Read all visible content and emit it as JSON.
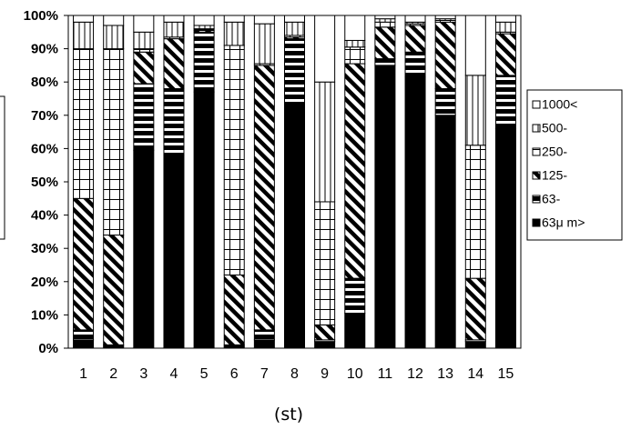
{
  "chart_data": {
    "type": "bar",
    "stacked": true,
    "percent": true,
    "categories": [
      "1",
      "2",
      "3",
      "4",
      "5",
      "6",
      "7",
      "8",
      "9",
      "10",
      "11",
      "12",
      "13",
      "14",
      "15"
    ],
    "xlabel": "(st)",
    "ylabel": "",
    "ylim": [
      0,
      100
    ],
    "yticks": [
      "0%",
      "10%",
      "20%",
      "30%",
      "40%",
      "50%",
      "60%",
      "70%",
      "80%",
      "90%",
      "100%"
    ],
    "grid": false,
    "legend_position": "right",
    "series": [
      {
        "name": "63μ m>",
        "pattern": "solid",
        "values": [
          2.5,
          0.5,
          59.5,
          58,
          77,
          0.5,
          2.5,
          73,
          2,
          10.5,
          85,
          81.5,
          70,
          2,
          66
        ]
      },
      {
        "name": "63-",
        "pattern": "hstripe",
        "values": [
          3,
          0.5,
          20,
          20,
          18,
          0.5,
          3,
          20,
          0.5,
          10.5,
          2,
          7.5,
          8,
          0.5,
          16
        ]
      },
      {
        "name": "125-",
        "pattern": "diagonal",
        "values": [
          39.5,
          33,
          9.5,
          15,
          0.5,
          21,
          79.5,
          0.5,
          4.5,
          64.5,
          9.5,
          8,
          20,
          18.5,
          12.5
        ]
      },
      {
        "name": "250-",
        "pattern": "grid",
        "values": [
          45,
          56,
          1,
          0.5,
          0.5,
          69,
          0.5,
          0.5,
          37,
          5,
          1.5,
          0.5,
          0.5,
          40,
          0.5
        ]
      },
      {
        "name": "500-",
        "pattern": "vstripe",
        "values": [
          8,
          7,
          5,
          4.5,
          1,
          7,
          12,
          4,
          36,
          2,
          1,
          0.5,
          0.5,
          21,
          3
        ]
      },
      {
        "name": "1000<",
        "pattern": "white",
        "values": [
          2,
          3,
          5,
          2,
          3,
          2,
          2.5,
          2,
          20,
          7.5,
          1,
          2,
          1,
          18,
          2
        ]
      }
    ]
  }
}
